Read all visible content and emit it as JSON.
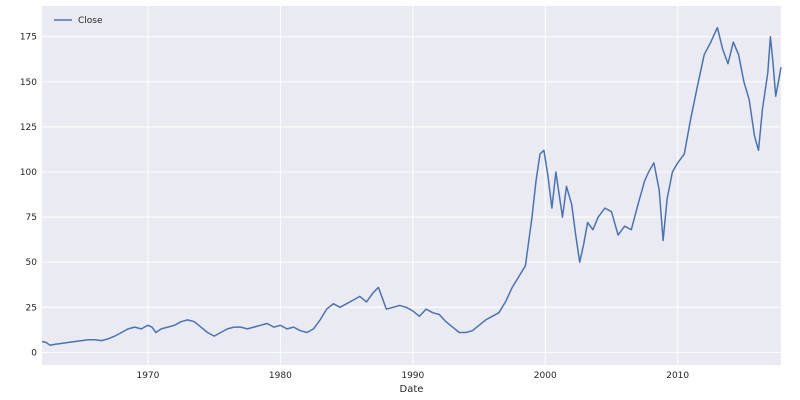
{
  "colors": {
    "plot_background": "#eaeaf2",
    "grid": "#ffffff",
    "line": "#4c72b0",
    "text": "#262626"
  },
  "chart_data": {
    "type": "line",
    "title": "",
    "xlabel": "Date",
    "ylabel": "",
    "xlim": [
      1962.0,
      2017.8
    ],
    "ylim": [
      -7,
      192
    ],
    "x_ticks": [
      1970,
      1980,
      1990,
      2000,
      2010
    ],
    "x_tick_labels": [
      "1970",
      "1980",
      "1990",
      "2000",
      "2010"
    ],
    "y_ticks": [
      0,
      25,
      50,
      75,
      100,
      125,
      150,
      175
    ],
    "y_tick_labels": [
      "0",
      "25",
      "50",
      "75",
      "100",
      "125",
      "150",
      "175"
    ],
    "grid": true,
    "legend": {
      "entries": [
        "Close"
      ],
      "placement": "top-left"
    },
    "series": [
      {
        "name": "Close",
        "points": [
          [
            1962.0,
            6
          ],
          [
            1962.3,
            5.5
          ],
          [
            1962.6,
            4
          ],
          [
            1963.0,
            4.5
          ],
          [
            1963.5,
            5
          ],
          [
            1964.0,
            5.5
          ],
          [
            1964.5,
            6
          ],
          [
            1965.0,
            6.5
          ],
          [
            1965.5,
            7
          ],
          [
            1966.0,
            7
          ],
          [
            1966.5,
            6.5
          ],
          [
            1967.0,
            7.5
          ],
          [
            1967.5,
            9
          ],
          [
            1968.0,
            11
          ],
          [
            1968.5,
            13
          ],
          [
            1969.0,
            14
          ],
          [
            1969.5,
            13
          ],
          [
            1970.0,
            15
          ],
          [
            1970.3,
            14
          ],
          [
            1970.6,
            11
          ],
          [
            1971.0,
            13
          ],
          [
            1971.5,
            14
          ],
          [
            1972.0,
            15
          ],
          [
            1972.5,
            17
          ],
          [
            1973.0,
            18
          ],
          [
            1973.5,
            17
          ],
          [
            1974.0,
            14
          ],
          [
            1974.5,
            11
          ],
          [
            1975.0,
            9
          ],
          [
            1975.5,
            11
          ],
          [
            1976.0,
            13
          ],
          [
            1976.5,
            14
          ],
          [
            1977.0,
            14
          ],
          [
            1977.5,
            13
          ],
          [
            1978.0,
            14
          ],
          [
            1978.5,
            15
          ],
          [
            1979.0,
            16
          ],
          [
            1979.5,
            14
          ],
          [
            1980.0,
            15
          ],
          [
            1980.5,
            13
          ],
          [
            1981.0,
            14
          ],
          [
            1981.5,
            12
          ],
          [
            1982.0,
            11
          ],
          [
            1982.5,
            13
          ],
          [
            1983.0,
            18
          ],
          [
            1983.5,
            24
          ],
          [
            1984.0,
            27
          ],
          [
            1984.5,
            25
          ],
          [
            1985.0,
            27
          ],
          [
            1985.5,
            29
          ],
          [
            1986.0,
            31
          ],
          [
            1986.5,
            28
          ],
          [
            1987.0,
            33
          ],
          [
            1987.4,
            36
          ],
          [
            1987.7,
            30
          ],
          [
            1988.0,
            24
          ],
          [
            1988.5,
            25
          ],
          [
            1989.0,
            26
          ],
          [
            1989.5,
            25
          ],
          [
            1990.0,
            23
          ],
          [
            1990.5,
            20
          ],
          [
            1991.0,
            24
          ],
          [
            1991.5,
            22
          ],
          [
            1992.0,
            21
          ],
          [
            1992.5,
            17
          ],
          [
            1993.0,
            14
          ],
          [
            1993.5,
            11
          ],
          [
            1994.0,
            11
          ],
          [
            1994.5,
            12
          ],
          [
            1995.0,
            15
          ],
          [
            1995.5,
            18
          ],
          [
            1996.0,
            20
          ],
          [
            1996.5,
            22
          ],
          [
            1997.0,
            28
          ],
          [
            1997.5,
            36
          ],
          [
            1998.0,
            42
          ],
          [
            1998.5,
            48
          ],
          [
            1999.0,
            75
          ],
          [
            1999.3,
            95
          ],
          [
            1999.6,
            110
          ],
          [
            1999.9,
            112
          ],
          [
            2000.2,
            98
          ],
          [
            2000.5,
            80
          ],
          [
            2000.8,
            100
          ],
          [
            2001.0,
            90
          ],
          [
            2001.3,
            75
          ],
          [
            2001.6,
            92
          ],
          [
            2002.0,
            82
          ],
          [
            2002.3,
            65
          ],
          [
            2002.6,
            50
          ],
          [
            2002.9,
            60
          ],
          [
            2003.2,
            72
          ],
          [
            2003.6,
            68
          ],
          [
            2004.0,
            75
          ],
          [
            2004.5,
            80
          ],
          [
            2005.0,
            78
          ],
          [
            2005.5,
            65
          ],
          [
            2006.0,
            70
          ],
          [
            2006.5,
            68
          ],
          [
            2007.0,
            82
          ],
          [
            2007.5,
            95
          ],
          [
            2007.8,
            100
          ],
          [
            2008.2,
            105
          ],
          [
            2008.6,
            90
          ],
          [
            2008.9,
            62
          ],
          [
            2009.2,
            85
          ],
          [
            2009.6,
            100
          ],
          [
            2010.0,
            105
          ],
          [
            2010.5,
            110
          ],
          [
            2011.0,
            130
          ],
          [
            2011.5,
            148
          ],
          [
            2012.0,
            165
          ],
          [
            2012.5,
            172
          ],
          [
            2013.0,
            180
          ],
          [
            2013.4,
            168
          ],
          [
            2013.8,
            160
          ],
          [
            2014.2,
            172
          ],
          [
            2014.6,
            165
          ],
          [
            2015.0,
            150
          ],
          [
            2015.4,
            140
          ],
          [
            2015.8,
            120
          ],
          [
            2016.1,
            112
          ],
          [
            2016.4,
            135
          ],
          [
            2016.8,
            155
          ],
          [
            2017.0,
            175
          ],
          [
            2017.2,
            160
          ],
          [
            2017.4,
            142
          ],
          [
            2017.6,
            150
          ],
          [
            2017.8,
            158
          ]
        ]
      }
    ]
  }
}
